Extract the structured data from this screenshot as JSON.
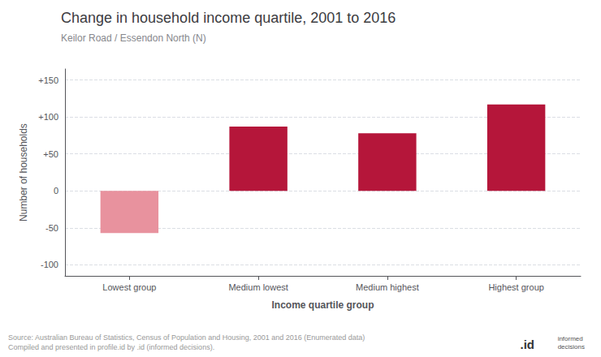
{
  "chart_data": {
    "type": "bar",
    "title": "Change in household income quartile, 2001 to 2016",
    "subtitle": "Keilor Road / Essendon North (N)",
    "categories": [
      "Lowest group",
      "Medium lowest",
      "Medium highest",
      "Highest group"
    ],
    "values": [
      -57,
      87,
      78,
      117
    ],
    "colors": [
      "#e8929e",
      "#b5163a",
      "#b5163a",
      "#b5163a"
    ],
    "xlabel": "Income quartile group",
    "ylabel": "Number of households",
    "ylim": [
      -115,
      165
    ],
    "yticks": [
      -100,
      -50,
      0,
      {
        "value": 50,
        "label": "+50"
      },
      {
        "value": 100,
        "label": "+100"
      },
      {
        "value": 150,
        "label": "+150"
      }
    ],
    "grid": true,
    "annotations": [
      "Source: Australian Bureau of Statistics, Census of Population and Housing, 2001 and 2016 (Enumerated data)\nCompiled and presented in profile.id by .id (informed decisions).",
      ".id",
      "informed\ndecisions"
    ]
  }
}
